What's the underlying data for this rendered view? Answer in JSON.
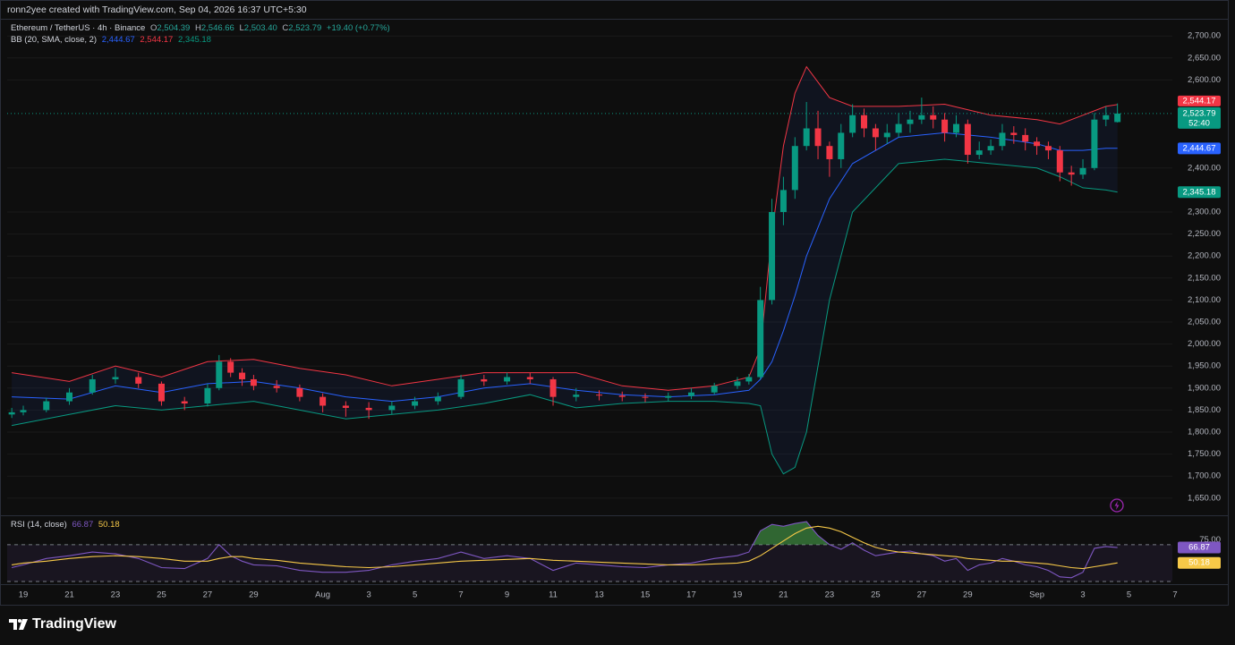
{
  "header": {
    "text": "ronn2yee created with TradingView.com, Sep 04, 2026 16:37 UTC+5:30"
  },
  "legend": {
    "symbol": "Ethereum / TetherUS · 4h · Binance",
    "o_key": "O",
    "o": "2,504.39",
    "h_key": "H",
    "h": "2,546.66",
    "l_key": "L",
    "l": "2,503.40",
    "c_key": "C",
    "c": "2,523.79",
    "change": "+19.40 (+0.77%)",
    "bb": "BB (20, SMA, close, 2)",
    "bb_basis": "2,444.67",
    "bb_upper": "2,544.17",
    "bb_lower": "2,345.18",
    "rsi": "RSI (14, close)",
    "rsi_value": "66.87",
    "rsi_ma": "50.18"
  },
  "chart_data": [
    {
      "type": "candlestick",
      "xlim": [
        -0.7,
        50
      ],
      "ylim": [
        1613,
        2737
      ],
      "yticks": [
        {
          "value": 2700,
          "label": "2,700.00"
        },
        {
          "value": 2650,
          "label": "2,650.00"
        },
        {
          "value": 2600,
          "label": "2,600.00"
        },
        {
          "value": 2400,
          "label": "2,400.00"
        },
        {
          "value": 2300,
          "label": "2,300.00"
        },
        {
          "value": 2250,
          "label": "2,250.00"
        },
        {
          "value": 2200,
          "label": "2,200.00"
        },
        {
          "value": 2150,
          "label": "2,150.00"
        },
        {
          "value": 2100,
          "label": "2,100.00"
        },
        {
          "value": 2050,
          "label": "2,050.00"
        },
        {
          "value": 2000,
          "label": "2,000.00"
        },
        {
          "value": 1950,
          "label": "1,950.00"
        },
        {
          "value": 1900,
          "label": "1,900.00"
        },
        {
          "value": 1850,
          "label": "1,850.00"
        },
        {
          "value": 1800,
          "label": "1,800.00"
        },
        {
          "value": 1750,
          "label": "1,750.00"
        },
        {
          "value": 1700,
          "label": "1,700.00"
        },
        {
          "value": 1650,
          "label": "1,650.00"
        }
      ],
      "grid": true,
      "up_color": "#089981",
      "down_color": "#f23645",
      "x": [
        -0.5,
        0,
        1,
        2,
        3,
        4,
        5,
        6,
        7,
        8,
        8.5,
        9,
        9.5,
        10,
        11,
        12,
        13,
        14,
        15,
        16,
        17,
        18,
        19,
        20,
        21,
        22,
        23,
        24,
        25,
        26,
        27,
        28,
        29,
        30,
        31,
        31.5,
        32,
        32.5,
        33,
        33.5,
        34,
        34.5,
        35,
        35.5,
        36,
        36.5,
        37,
        37.5,
        38,
        38.5,
        39,
        39.5,
        40,
        40.5,
        41,
        41.5,
        42,
        42.5,
        43,
        43.5,
        44,
        44.5,
        45,
        45.5,
        46,
        46.5,
        47,
        47.5
      ],
      "open": [
        1840,
        1845,
        1850,
        1870,
        1890,
        1920,
        1925,
        1910,
        1870,
        1865,
        1900,
        1960,
        1935,
        1920,
        1905,
        1900,
        1880,
        1860,
        1855,
        1850,
        1860,
        1870,
        1880,
        1920,
        1915,
        1925,
        1920,
        1880,
        1885,
        1883,
        1880,
        1878,
        1882,
        1890,
        1905,
        1915,
        1925,
        2100,
        2300,
        2350,
        2450,
        2490,
        2450,
        2420,
        2480,
        2520,
        2490,
        2470,
        2480,
        2500,
        2510,
        2520,
        2510,
        2480,
        2500,
        2430,
        2440,
        2450,
        2480,
        2475,
        2460,
        2450,
        2440,
        2390,
        2385,
        2400,
        2510,
        2504.39
      ],
      "high": [
        1855,
        1860,
        1878,
        1900,
        1930,
        1945,
        1935,
        1915,
        1880,
        1910,
        1975,
        1968,
        1945,
        1930,
        1918,
        1908,
        1888,
        1870,
        1868,
        1870,
        1880,
        1890,
        1930,
        1930,
        1935,
        1935,
        1925,
        1900,
        1895,
        1892,
        1888,
        1890,
        1900,
        1912,
        1925,
        1932,
        2130,
        2330,
        2380,
        2470,
        2550,
        2530,
        2460,
        2500,
        2545,
        2535,
        2500,
        2500,
        2525,
        2530,
        2560,
        2540,
        2525,
        2520,
        2510,
        2460,
        2465,
        2500,
        2495,
        2490,
        2470,
        2460,
        2450,
        2405,
        2420,
        2525,
        2540,
        2546.66
      ],
      "low": [
        1832,
        1838,
        1845,
        1862,
        1885,
        1910,
        1900,
        1860,
        1850,
        1858,
        1895,
        1925,
        1905,
        1895,
        1890,
        1870,
        1845,
        1835,
        1830,
        1840,
        1852,
        1862,
        1875,
        1905,
        1908,
        1910,
        1860,
        1870,
        1872,
        1870,
        1868,
        1870,
        1875,
        1885,
        1898,
        1908,
        1920,
        2090,
        2270,
        2330,
        2440,
        2420,
        2380,
        2400,
        2470,
        2470,
        2440,
        2455,
        2470,
        2480,
        2500,
        2490,
        2460,
        2470,
        2410,
        2420,
        2430,
        2440,
        2455,
        2440,
        2430,
        2420,
        2370,
        2360,
        2375,
        2395,
        2495,
        2503.4
      ],
      "close": [
        1845,
        1850,
        1870,
        1890,
        1920,
        1925,
        1910,
        1870,
        1865,
        1900,
        1960,
        1935,
        1920,
        1905,
        1900,
        1880,
        1860,
        1855,
        1850,
        1860,
        1870,
        1880,
        1920,
        1915,
        1925,
        1920,
        1880,
        1885,
        1883,
        1880,
        1878,
        1882,
        1890,
        1905,
        1915,
        1925,
        2100,
        2300,
        2350,
        2450,
        2490,
        2450,
        2420,
        2480,
        2520,
        2490,
        2470,
        2480,
        2500,
        2510,
        2520,
        2510,
        2480,
        2500,
        2430,
        2440,
        2450,
        2480,
        2475,
        2460,
        2450,
        2440,
        2390,
        2385,
        2400,
        2510,
        2520,
        2523.79
      ],
      "bb": {
        "x": [
          -0.5,
          2,
          4,
          6,
          8,
          10,
          12,
          14,
          16,
          18,
          20,
          22,
          24,
          26,
          28,
          30,
          31.5,
          32,
          32.5,
          33,
          33.5,
          34,
          35,
          36,
          38,
          40,
          42,
          44,
          45,
          46,
          47,
          47.5
        ],
        "upper": [
          1935,
          1915,
          1950,
          1925,
          1960,
          1965,
          1945,
          1930,
          1905,
          1920,
          1935,
          1935,
          1935,
          1905,
          1895,
          1905,
          1925,
          1990,
          2250,
          2450,
          2570,
          2630,
          2560,
          2540,
          2540,
          2545,
          2520,
          2510,
          2500,
          2520,
          2540,
          2544.17
        ],
        "basis": [
          1880,
          1875,
          1905,
          1890,
          1910,
          1915,
          1900,
          1880,
          1870,
          1880,
          1900,
          1910,
          1895,
          1885,
          1880,
          1885,
          1895,
          1920,
          1960,
          2030,
          2110,
          2200,
          2330,
          2410,
          2470,
          2480,
          2470,
          2455,
          2440,
          2440,
          2445,
          2444.67
        ],
        "lower": [
          1815,
          1840,
          1860,
          1850,
          1860,
          1870,
          1850,
          1830,
          1840,
          1850,
          1865,
          1885,
          1855,
          1865,
          1870,
          1870,
          1865,
          1860,
          1750,
          1705,
          1720,
          1800,
          2100,
          2300,
          2410,
          2420,
          2410,
          2400,
          2380,
          2355,
          2350,
          2345.18
        ],
        "upper_color": "#f23645",
        "basis_color": "#2962ff",
        "lower_color": "#089981",
        "fill_color": "rgba(41,98,255,0.07)"
      },
      "price_labels": [
        {
          "value": 2544.17,
          "label": "2,544.17",
          "color": "#f23645"
        },
        {
          "value": 2523.79,
          "label": "2,523.79",
          "color": "#089981"
        },
        {
          "value": 2444.67,
          "label": "2,444.67",
          "color": "#2962ff"
        },
        {
          "value": 2345.18,
          "label": "2,345.18",
          "color": "#089981"
        }
      ],
      "countdown": "52:40"
    },
    {
      "type": "line",
      "xlim": [
        -0.7,
        50
      ],
      "ylim": [
        28,
        100
      ],
      "yticks": [
        {
          "value": 75,
          "label": "75.00"
        }
      ],
      "bands": [
        70,
        30
      ],
      "band_fill": "rgba(126,87,194,0.10)",
      "overbought_fill": "rgba(76,175,80,0.55)",
      "xticks": [
        {
          "value": 0,
          "label": "19"
        },
        {
          "value": 2,
          "label": "21"
        },
        {
          "value": 4,
          "label": "23"
        },
        {
          "value": 6,
          "label": "25"
        },
        {
          "value": 8,
          "label": "27"
        },
        {
          "value": 10,
          "label": "29"
        },
        {
          "value": 13,
          "label": "Aug"
        },
        {
          "value": 15,
          "label": "3"
        },
        {
          "value": 17,
          "label": "5"
        },
        {
          "value": 19,
          "label": "7"
        },
        {
          "value": 21,
          "label": "9"
        },
        {
          "value": 23,
          "label": "11"
        },
        {
          "value": 25,
          "label": "13"
        },
        {
          "value": 27,
          "label": "15"
        },
        {
          "value": 29,
          "label": "17"
        },
        {
          "value": 31,
          "label": "19"
        },
        {
          "value": 33,
          "label": "21"
        },
        {
          "value": 35,
          "label": "23"
        },
        {
          "value": 37,
          "label": "25"
        },
        {
          "value": 39,
          "label": "27"
        },
        {
          "value": 41,
          "label": "29"
        },
        {
          "value": 44,
          "label": "Sep"
        },
        {
          "value": 46,
          "label": "3"
        },
        {
          "value": 48,
          "label": "5"
        },
        {
          "value": 50,
          "label": "7"
        }
      ],
      "x": [
        -0.5,
        0,
        1,
        2,
        3,
        4,
        5,
        6,
        7,
        8,
        8.5,
        9,
        9.5,
        10,
        11,
        12,
        13,
        14,
        15,
        16,
        17,
        18,
        19,
        20,
        21,
        22,
        23,
        24,
        25,
        26,
        27,
        28,
        29,
        30,
        31,
        31.5,
        32,
        32.5,
        33,
        33.5,
        34,
        34.5,
        35,
        35.5,
        36,
        36.5,
        37,
        37.5,
        38,
        38.5,
        39,
        39.5,
        40,
        40.5,
        41,
        41.5,
        42,
        42.5,
        43,
        43.5,
        44,
        44.5,
        45,
        45.5,
        46,
        46.5,
        47,
        47.5
      ],
      "series": [
        {
          "color": "#7e57c2",
          "values": [
            45,
            48,
            55,
            58,
            62,
            60,
            55,
            45,
            44,
            55,
            70,
            58,
            52,
            48,
            47,
            42,
            40,
            40,
            42,
            48,
            52,
            55,
            62,
            55,
            58,
            55,
            42,
            50,
            48,
            46,
            45,
            48,
            50,
            55,
            58,
            62,
            85,
            92,
            90,
            93,
            95,
            80,
            70,
            65,
            72,
            64,
            58,
            60,
            62,
            63,
            60,
            58,
            52,
            55,
            42,
            48,
            50,
            55,
            52,
            48,
            46,
            42,
            35,
            34,
            40,
            66,
            68,
            66.87
          ]
        },
        {
          "color": "#f7c948",
          "values": [
            48,
            50,
            52,
            55,
            57,
            58,
            57,
            55,
            52,
            52,
            55,
            57,
            57,
            55,
            53,
            50,
            48,
            46,
            45,
            46,
            48,
            50,
            52,
            53,
            54,
            55,
            53,
            52,
            51,
            50,
            49,
            48,
            48,
            49,
            50,
            52,
            58,
            66,
            74,
            82,
            88,
            90,
            88,
            84,
            78,
            72,
            67,
            64,
            62,
            61,
            60,
            59,
            58,
            57,
            55,
            54,
            53,
            52,
            52,
            51,
            50,
            49,
            47,
            45,
            44,
            46,
            48,
            50.18
          ]
        }
      ],
      "price_labels": [
        {
          "value": 66.87,
          "label": "66.87",
          "color": "#7e57c2"
        },
        {
          "value": 50.18,
          "label": "50.18",
          "color": "#f7c948"
        }
      ]
    }
  ],
  "footer": {
    "brand": "TradingView"
  }
}
